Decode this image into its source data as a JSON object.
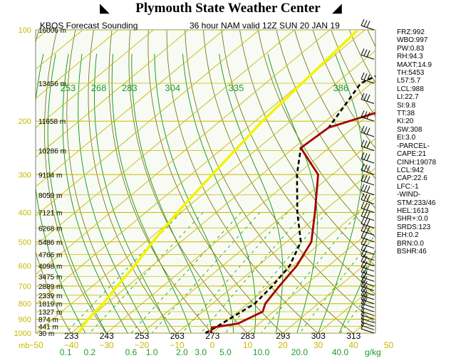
{
  "header": {
    "title": "Plymouth State Weather Center",
    "station_label": "KBOS Forecast Sounding",
    "run_label": "36 hour NAM valid 12Z SUN 20 JAN 19"
  },
  "stats": [
    "FRZ:992",
    "WBO:997",
    "PW:0.83",
    "RH:94.3",
    "MAXT:14.9",
    "TH:5453",
    "L57:5.7",
    "LCL:988",
    "LI:22.7",
    "SI:9.8",
    "TT:38",
    "KI:20",
    "SW:308",
    "EI:3.0",
    "-PARCEL-",
    "CAPE:21",
    "CINH:19078",
    "LCL:942",
    "CAP:22.6",
    "LFC:-1",
    "-WIND-",
    "STM:233/46",
    "HEL:1613",
    "SHR+:0.0",
    "SRDS:123",
    "EH:0.2",
    "BRN:0.0",
    "BSHR:46"
  ],
  "chart_data": {
    "type": "skew-t",
    "title": "36 hour NAM valid 12Z SUN 20 JAN 19",
    "pressure_levels": [
      100,
      200,
      300,
      400,
      500,
      600,
      700,
      800,
      900,
      1000
    ],
    "pressure_unit": "mb",
    "temperature_ticks": [
      -50,
      -40,
      -30,
      -20,
      -10,
      0,
      10,
      20,
      30,
      40,
      50
    ],
    "mixing_ratio_ticks": [
      0.1,
      0.2,
      0.6,
      1.0,
      2.0,
      3.0,
      5.0,
      10.0,
      20.0,
      40.0
    ],
    "mixing_ratio_unit": "g/kg",
    "theta_labels_top": [
      253,
      268,
      283,
      304,
      335,
      386
    ],
    "theta_labels_bottom": [
      233,
      243,
      253,
      263,
      273,
      283,
      293,
      303,
      313
    ],
    "heights": [
      {
        "p": 100,
        "label": "16006 m"
      },
      {
        "p": 150,
        "label": "13456 m"
      },
      {
        "p": 200,
        "label": "11658 m"
      },
      {
        "p": 250,
        "label": "10286 m"
      },
      {
        "p": 300,
        "label": "9104 m"
      },
      {
        "p": 350,
        "label": "8059 m"
      },
      {
        "p": 400,
        "label": "7121 m"
      },
      {
        "p": 450,
        "label": "6268 m"
      },
      {
        "p": 500,
        "label": "5486 m"
      },
      {
        "p": 550,
        "label": "4766 m"
      },
      {
        "p": 600,
        "label": "4098 m"
      },
      {
        "p": 650,
        "label": "3475 m"
      },
      {
        "p": 700,
        "label": "2889 m"
      },
      {
        "p": 750,
        "label": "2339 m"
      },
      {
        "p": 800,
        "label": "1819 m"
      },
      {
        "p": 850,
        "label": "1327 m"
      },
      {
        "p": 900,
        "label": "874 m"
      },
      {
        "p": 950,
        "label": "441 m"
      },
      {
        "p": 1000,
        "label": "30 m"
      }
    ],
    "temperature_profile": [
      [
        1000,
        -0.5
      ],
      [
        985,
        -1
      ],
      [
        960,
        -2
      ],
      [
        930,
        4
      ],
      [
        850,
        7
      ],
      [
        800,
        5
      ],
      [
        700,
        3
      ],
      [
        600,
        1
      ],
      [
        500,
        -3
      ],
      [
        400,
        -12
      ],
      [
        300,
        -24
      ],
      [
        245,
        -38
      ],
      [
        210,
        -37
      ],
      [
        150,
        -12
      ],
      [
        100,
        5
      ]
    ],
    "dewpoint_profile": [
      [
        1000,
        -2
      ],
      [
        960,
        -1
      ],
      [
        900,
        0
      ],
      [
        800,
        2
      ],
      [
        700,
        1
      ],
      [
        600,
        -1
      ],
      [
        500,
        -6
      ],
      [
        400,
        -17
      ],
      [
        300,
        -30
      ],
      [
        245,
        -38
      ],
      [
        210,
        -37
      ],
      [
        150,
        -43
      ],
      [
        125,
        -37
      ],
      [
        100,
        -30
      ]
    ],
    "parcel_profile": [
      [
        1000,
        -38
      ],
      [
        900,
        -40
      ],
      [
        800,
        -41
      ],
      [
        700,
        -43
      ],
      [
        600,
        -45
      ],
      [
        500,
        -48
      ],
      [
        400,
        -51
      ],
      [
        300,
        -54
      ],
      [
        200,
        -58
      ],
      [
        100,
        -62
      ]
    ],
    "colors": {
      "background": "#f7fbf3",
      "isobar": "#c8b800",
      "isotherm": "#c8b800",
      "dry_adiabat": "#6a6a00",
      "moist_adiabat": "#0e8f1a",
      "mixing_ratio": "#1f9d2a",
      "temperature": "#a40000",
      "dewpoint": "#000000",
      "parcel": "#f3f300",
      "axis_labels": "#c8b800",
      "theta_labels": "#1f9d2a"
    }
  }
}
